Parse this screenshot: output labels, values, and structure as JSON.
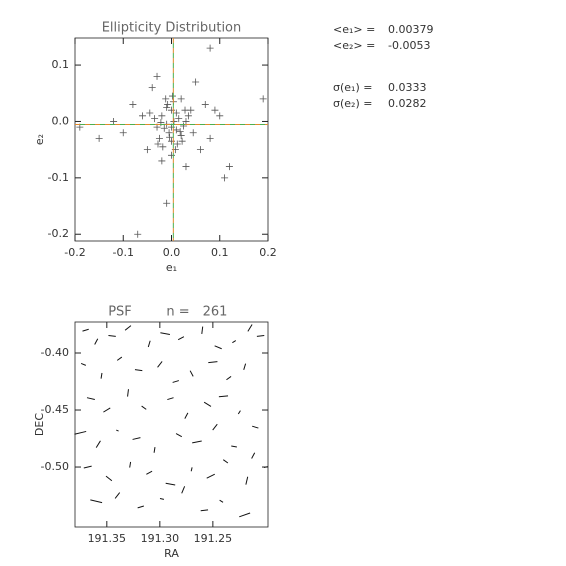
{
  "chart_data": [
    {
      "type": "scatter",
      "title": "Ellipticity Distribution",
      "xlabel": "e₁",
      "ylabel": "e₂",
      "xlim": [
        -0.2,
        0.2
      ],
      "ylim": [
        -0.212,
        0.148
      ],
      "xticks": [
        -0.2,
        -0.1,
        {
          "value": 0,
          "label": "0.0"
        },
        0.1,
        0.2
      ],
      "yticks": [
        -0.2,
        -0.1,
        {
          "value": 0,
          "label": "0.0"
        },
        0.1
      ],
      "color": "#555555",
      "mean_colors": [
        "#e08a2c",
        "#4caf50"
      ],
      "stats": [
        {
          "label": "<e₁> =",
          "value": 0.00379
        },
        {
          "label": "<e₂> =",
          "value": -0.0053
        },
        {
          "label": "σ(e₁) =",
          "value": 0.0333
        },
        {
          "label": "σ(e₂) =",
          "value": 0.0282
        }
      ],
      "x": [
        0.19,
        -0.19,
        0.08,
        -0.07,
        -0.01,
        0.12,
        0.11,
        -0.12,
        -0.15,
        0.05,
        -0.03,
        -0.04,
        0.1,
        0.08,
        -0.08,
        0.03,
        -0.02,
        0.02,
        -0.05,
        0.06,
        0.09,
        -0.1,
        0.04,
        0.07,
        -0.06,
        0.0,
        0.01,
        -0.01,
        0.005,
        -0.005,
        0.015,
        -0.015,
        0.02,
        -0.02,
        0.025,
        -0.025,
        0.0,
        0.01,
        -0.01,
        0.03,
        -0.03,
        0.0,
        0.012,
        -0.008,
        0.018,
        -0.018,
        0.004,
        -0.004,
        0.035,
        -0.035,
        0.008,
        -0.012,
        0.022,
        -0.022,
        0.002,
        0.045,
        -0.045,
        0.028,
        -0.028,
        0.0
      ],
      "y": [
        0.04,
        -0.01,
        0.13,
        -0.2,
        -0.145,
        -0.08,
        -0.1,
        0.0,
        -0.03,
        0.07,
        0.08,
        0.06,
        0.01,
        -0.03,
        0.03,
        -0.08,
        -0.07,
        0.04,
        -0.05,
        -0.05,
        0.02,
        -0.02,
        0.02,
        0.03,
        0.01,
        -0.01,
        -0.015,
        -0.005,
        0.0,
        -0.02,
        0.005,
        -0.012,
        -0.025,
        0.01,
        -0.008,
        -0.03,
        0.02,
        0.015,
        0.025,
        0.0,
        -0.01,
        -0.035,
        -0.04,
        0.03,
        -0.018,
        -0.045,
        0.035,
        -0.028,
        0.01,
        0.005,
        -0.05,
        0.04,
        -0.035,
        -0.002,
        0.045,
        -0.02,
        0.015,
        0.02,
        -0.04,
        -0.06
      ]
    },
    {
      "type": "whisker",
      "title": "PSF",
      "n_label": "n =",
      "n": 261,
      "xlabel": "RA",
      "ylabel": "DEC",
      "xlim": [
        191.38,
        191.198
      ],
      "ylim": [
        -0.5526,
        -0.3728
      ],
      "xticks": [
        191.35,
        {
          "value": 191.3,
          "label": "191.30"
        },
        191.25
      ],
      "yticks": [
        {
          "value": -0.4,
          "label": "-0.40"
        },
        -0.45,
        {
          "value": -0.5,
          "label": "-0.50"
        }
      ],
      "color": "#111111",
      "x": [
        191.37,
        191.36,
        191.345,
        191.33,
        191.31,
        191.295,
        191.28,
        191.26,
        191.245,
        191.23,
        191.215,
        191.205,
        191.372,
        191.355,
        191.338,
        191.32,
        191.3,
        191.285,
        191.27,
        191.25,
        191.235,
        191.22,
        191.365,
        191.35,
        191.33,
        191.315,
        191.29,
        191.275,
        191.255,
        191.24,
        191.225,
        191.21,
        191.375,
        191.358,
        191.34,
        191.322,
        191.305,
        191.282,
        191.265,
        191.248,
        191.23,
        191.212,
        191.368,
        191.348,
        191.328,
        191.31,
        191.29,
        191.27,
        191.252,
        191.238,
        191.218,
        191.2,
        191.36,
        191.34,
        191.318,
        191.298,
        191.278,
        191.258,
        191.242,
        191.22
      ],
      "y": [
        -0.38,
        -0.39,
        -0.385,
        -0.378,
        -0.392,
        -0.383,
        -0.387,
        -0.38,
        -0.395,
        -0.39,
        -0.378,
        -0.385,
        -0.41,
        -0.42,
        -0.405,
        -0.415,
        -0.41,
        -0.425,
        -0.418,
        -0.408,
        -0.422,
        -0.412,
        -0.44,
        -0.45,
        -0.435,
        -0.448,
        -0.44,
        -0.455,
        -0.445,
        -0.438,
        -0.452,
        -0.465,
        -0.47,
        -0.48,
        -0.468,
        -0.475,
        -0.485,
        -0.472,
        -0.478,
        -0.465,
        -0.482,
        -0.49,
        -0.5,
        -0.51,
        -0.498,
        -0.505,
        -0.515,
        -0.502,
        -0.508,
        -0.495,
        -0.512,
        -0.5,
        -0.53,
        -0.525,
        -0.535,
        -0.528,
        -0.52,
        -0.538,
        -0.53,
        -0.542
      ],
      "e1": [
        0.03,
        -0.02,
        0.04,
        0.01,
        -0.03,
        0.05,
        0.02,
        -0.04,
        0.03,
        0.01,
        -0.02,
        0.04,
        0.02,
        -0.03,
        0.01,
        0.04,
        -0.01,
        0.03,
        -0.02,
        0.05,
        0.01,
        -0.03,
        0.04,
        0.02,
        -0.04,
        0.01,
        0.03,
        -0.02,
        0.02,
        0.05,
        -0.01,
        0.03,
        0.06,
        -0.02,
        0.01,
        0.04,
        -0.03,
        0.02,
        0.05,
        -0.01,
        0.03,
        -0.02,
        0.04,
        0.01,
        -0.03,
        0.02,
        0.05,
        -0.02,
        0.03,
        0.01,
        -0.04,
        0.02,
        0.06,
        -0.01,
        0.03,
        0.02,
        -0.03,
        0.04,
        0.01,
        0.05
      ],
      "e2": [
        0.02,
        0.03,
        -0.01,
        0.04,
        0.02,
        -0.02,
        0.03,
        0.01,
        -0.03,
        0.02,
        0.04,
        0.01,
        -0.02,
        0.01,
        0.03,
        -0.01,
        0.04,
        0.02,
        -0.03,
        0.01,
        0.03,
        0.02,
        -0.02,
        0.04,
        0.01,
        -0.03,
        0.02,
        0.03,
        -0.04,
        0.01,
        0.02,
        -0.02,
        0.03,
        0.04,
        -0.01,
        0.02,
        0.01,
        -0.03,
        0.02,
        0.04,
        -0.01,
        0.03,
        0.02,
        -0.04,
        0.01,
        0.03,
        -0.02,
        0.01,
        0.04,
        -0.03,
        0.02,
        0.01,
        -0.03,
        0.04,
        0.02,
        -0.01,
        0.03,
        0.01,
        -0.02,
        0.04
      ]
    }
  ]
}
